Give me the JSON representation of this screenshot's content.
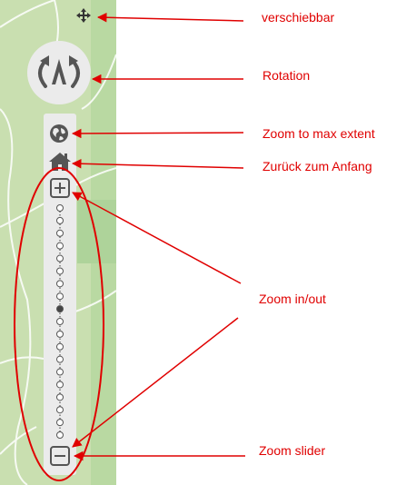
{
  "controls": {
    "move_handle_icon": "move-arrows-icon",
    "rotation_icon": "rotate-north-arrow-icon",
    "max_extent_icon": "globe-icon",
    "home_icon": "home-icon",
    "zoom_in_icon": "plus-box-icon",
    "zoom_out_icon": "minus-box-icon"
  },
  "zoom_slider": {
    "total_steps": 19,
    "current_step": 8
  },
  "annotations": {
    "verschiebbar": "verschiebbar",
    "rotation": "Rotation",
    "max_extent": "Zoom to max extent",
    "home": "Zurück zum Anfang",
    "zoom_inout": "Zoom in/out",
    "zoom_slider": "Zoom slider"
  },
  "colors": {
    "map_green": "#c9dfb0",
    "annotation_red": "#e00000",
    "control_bg": "#ebebeb",
    "control_icon": "#555555"
  }
}
